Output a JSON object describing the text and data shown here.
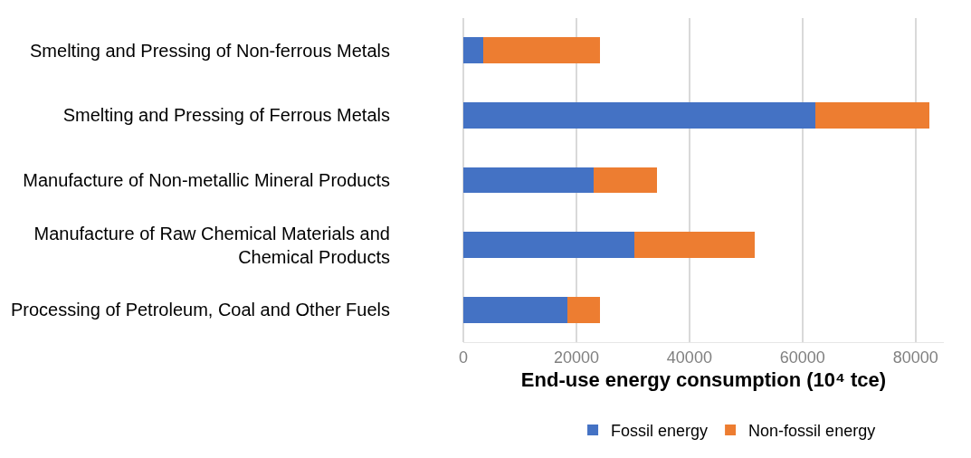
{
  "chart_data": {
    "type": "bar",
    "orientation": "horizontal",
    "stacked": true,
    "categories": [
      "Smelting and Pressing of Non-ferrous Metals",
      "Smelting and Pressing of Ferrous Metals",
      "Manufacture of Non-metallic Mineral Products",
      "Manufacture of Raw Chemical Materials and Chemical Products",
      "Processing of Petroleum, Coal and Other Fuels"
    ],
    "series": [
      {
        "name": "Fossil energy",
        "color": "#4472c4",
        "values": [
          3600,
          62300,
          23000,
          30300,
          18400
        ]
      },
      {
        "name": "Non-fossil energy",
        "color": "#ed7d31",
        "values": [
          20600,
          20200,
          11300,
          21200,
          5800
        ]
      }
    ],
    "xlabel": "End-use energy consumption (10⁴ tce)",
    "xlim": [
      0,
      85000
    ],
    "xticks": [
      0,
      20000,
      40000,
      60000,
      80000
    ],
    "grid": "x",
    "legend": "bottom"
  }
}
